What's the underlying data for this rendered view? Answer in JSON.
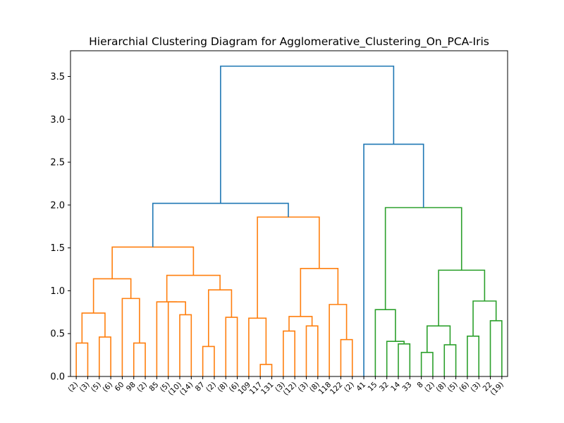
{
  "chart_data": {
    "type": "dendrogram",
    "title": "Hierarchial Clustering Diagram for Agglomerative_Clustering_On_PCA-Iris",
    "xlabel": "",
    "ylabel": "",
    "ylim": [
      0,
      3.8
    ],
    "yticks": [
      "0.0",
      "0.5",
      "1.0",
      "1.5",
      "2.0",
      "2.5",
      "3.0",
      "3.5"
    ],
    "ytick_values": [
      0,
      0.5,
      1.0,
      1.5,
      2.0,
      2.5,
      3.0,
      3.5
    ],
    "grid": false,
    "leaf_labels": [
      "(2)",
      "(3)",
      "(5)",
      "(6)",
      "60",
      "98",
      "(2)",
      "85",
      "(5)",
      "(10)",
      "(14)",
      "87",
      "(2)",
      "(8)",
      "(6)",
      "109",
      "117",
      "131",
      "(3)",
      "(12)",
      "(3)",
      "(8)",
      "118",
      "122",
      "(2)",
      "41",
      "15",
      "32",
      "14",
      "33",
      "8",
      "(2)",
      "(8)",
      "(5)",
      "(6)",
      "(3)",
      "22",
      "(19)"
    ],
    "colors": {
      "cluster_a": "#ff7f0e",
      "cluster_b": "#2ca02c",
      "above_threshold": "#1f77b4"
    },
    "links": [
      {
        "left": 0,
        "right": 1,
        "height": 0.39,
        "color": "cluster_a"
      },
      {
        "left": 2,
        "right": 3,
        "height": 0.46,
        "color": "cluster_a"
      },
      {
        "left": "L0",
        "right": "L1",
        "height": 0.74,
        "color": "cluster_a"
      },
      {
        "left": 5,
        "right": 6,
        "height": 0.39,
        "color": "cluster_a"
      },
      {
        "left": 4,
        "right": "L3",
        "height": 0.91,
        "color": "cluster_a"
      },
      {
        "left": "L2",
        "right": "L4",
        "height": 1.14,
        "color": "cluster_a"
      },
      {
        "left": 9,
        "right": 10,
        "height": 0.72,
        "color": "cluster_a"
      },
      {
        "left": 8,
        "right": "L6",
        "height": 0.87,
        "color": "cluster_a"
      },
      {
        "left": 7,
        "right": "L7",
        "height": 0.87,
        "color": "cluster_a"
      },
      {
        "left": 11,
        "right": 12,
        "height": 0.35,
        "color": "cluster_a"
      },
      {
        "left": 13,
        "right": 14,
        "height": 0.69,
        "color": "cluster_a"
      },
      {
        "left": "L9",
        "right": "L10",
        "height": 1.01,
        "color": "cluster_a"
      },
      {
        "left": "L8",
        "right": "L11",
        "height": 1.18,
        "color": "cluster_a"
      },
      {
        "left": "L5",
        "right": "L12",
        "height": 1.51,
        "color": "cluster_a"
      },
      {
        "left": 16,
        "right": 17,
        "height": 0.14,
        "color": "cluster_a"
      },
      {
        "left": 15,
        "right": "L14",
        "height": 0.68,
        "color": "cluster_a"
      },
      {
        "left": 20,
        "right": 21,
        "height": 0.59,
        "color": "cluster_a"
      },
      {
        "left": 18,
        "right": 19,
        "height": 0.53,
        "color": "cluster_a"
      },
      {
        "left": "L17",
        "right": "L16",
        "height": 0.7,
        "color": "cluster_a"
      },
      {
        "left": 23,
        "right": 24,
        "height": 0.43,
        "color": "cluster_a"
      },
      {
        "left": 22,
        "right": "L19",
        "height": 0.84,
        "color": "cluster_a"
      },
      {
        "left": "L18",
        "right": "L20",
        "height": 1.26,
        "color": "cluster_a"
      },
      {
        "left": "L15",
        "right": "L21",
        "height": 1.86,
        "color": "cluster_a"
      },
      {
        "left": "L13",
        "right": "L22",
        "height": 2.02,
        "color": "above_threshold"
      },
      {
        "left": 28,
        "right": 29,
        "height": 0.38,
        "color": "cluster_b"
      },
      {
        "left": 27,
        "right": "L24",
        "height": 0.41,
        "color": "cluster_b"
      },
      {
        "left": 26,
        "right": "L25",
        "height": 0.78,
        "color": "cluster_b"
      },
      {
        "left": 30,
        "right": 31,
        "height": 0.28,
        "color": "cluster_b"
      },
      {
        "left": 32,
        "right": 33,
        "height": 0.37,
        "color": "cluster_b"
      },
      {
        "left": "L27",
        "right": "L28",
        "height": 0.59,
        "color": "cluster_b"
      },
      {
        "left": 34,
        "right": 35,
        "height": 0.47,
        "color": "cluster_b"
      },
      {
        "left": 36,
        "right": 37,
        "height": 0.65,
        "color": "cluster_b"
      },
      {
        "left": "L30",
        "right": "L31",
        "height": 0.88,
        "color": "cluster_b"
      },
      {
        "left": "L29",
        "right": "L32",
        "height": 1.24,
        "color": "cluster_b"
      },
      {
        "left": "L26",
        "right": "L33",
        "height": 1.97,
        "color": "cluster_b"
      },
      {
        "left": 25,
        "right": "L34",
        "height": 2.71,
        "color": "above_threshold"
      },
      {
        "left": "L23",
        "right": "L35",
        "height": 3.62,
        "color": "above_threshold"
      }
    ]
  }
}
